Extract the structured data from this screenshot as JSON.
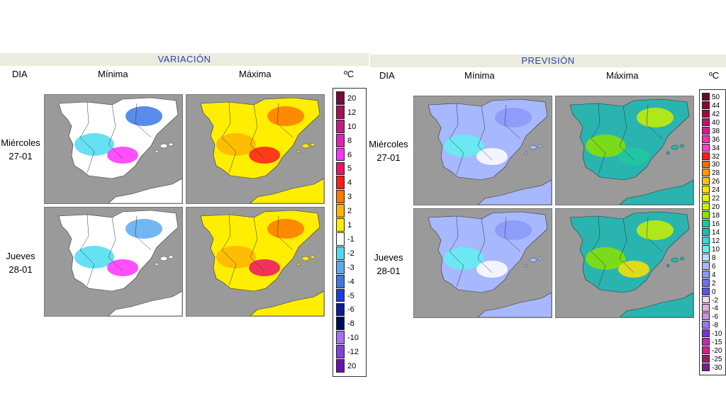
{
  "panels": {
    "variation": {
      "title": "VARIACIÓN",
      "day_header": "DIA",
      "col_min": "Mínima",
      "col_max": "Máxima",
      "unit": "ºC",
      "legend": [
        {
          "label": "20",
          "color": "#7a0a3a"
        },
        {
          "label": "12",
          "color": "#a8105a"
        },
        {
          "label": "10",
          "color": "#c81a86"
        },
        {
          "label": "8",
          "color": "#e020c0"
        },
        {
          "label": "6",
          "color": "#ff30ff"
        },
        {
          "label": "5",
          "color": "#f0106a"
        },
        {
          "label": "4",
          "color": "#ff1a1a"
        },
        {
          "label": "3",
          "color": "#ff7800"
        },
        {
          "label": "2",
          "color": "#ffb400"
        },
        {
          "label": "1",
          "color": "#ffee00"
        },
        {
          "label": "-1",
          "color": "#ffffff"
        },
        {
          "label": "-2",
          "color": "#4adcf0"
        },
        {
          "label": "-3",
          "color": "#5aaaf0"
        },
        {
          "label": "-4",
          "color": "#3c78e6"
        },
        {
          "label": "-5",
          "color": "#1a3ce0"
        },
        {
          "label": "-6",
          "color": "#0a1a9a"
        },
        {
          "label": "-8",
          "color": "#000a5a"
        },
        {
          "label": "-10",
          "color": "#a070ff"
        },
        {
          "label": "-12",
          "color": "#8040e8"
        },
        {
          "label": "20",
          "color": "#6a10b0"
        }
      ]
    },
    "forecast": {
      "title": "PREVISIÓN",
      "day_header": "DIA",
      "col_min": "Mínima",
      "col_max": "Máxima",
      "unit": "ºC",
      "legend": [
        {
          "label": "50",
          "color": "#6a0a20"
        },
        {
          "label": "44",
          "color": "#8a0a2a"
        },
        {
          "label": "42",
          "color": "#a00a40"
        },
        {
          "label": "40",
          "color": "#c0106a"
        },
        {
          "label": "38",
          "color": "#d81a8a"
        },
        {
          "label": "36",
          "color": "#f030b0"
        },
        {
          "label": "34",
          "color": "#ff40c8"
        },
        {
          "label": "32",
          "color": "#ff1a1a"
        },
        {
          "label": "30",
          "color": "#ff6a00"
        },
        {
          "label": "28",
          "color": "#ff9a00"
        },
        {
          "label": "26",
          "color": "#ffc000"
        },
        {
          "label": "24",
          "color": "#ffe000"
        },
        {
          "label": "22",
          "color": "#e6f000"
        },
        {
          "label": "20",
          "color": "#c8f000"
        },
        {
          "label": "18",
          "color": "#8ae000"
        },
        {
          "label": "16",
          "color": "#20c8a0"
        },
        {
          "label": "14",
          "color": "#2ab4b0"
        },
        {
          "label": "12",
          "color": "#30dcdc"
        },
        {
          "label": "10",
          "color": "#60f0f0"
        },
        {
          "label": "8",
          "color": "#b8dcff"
        },
        {
          "label": "6",
          "color": "#a8b8ff"
        },
        {
          "label": "4",
          "color": "#8898f8"
        },
        {
          "label": "2",
          "color": "#7070f0"
        },
        {
          "label": "0",
          "color": "#5a5ae0"
        },
        {
          "label": "-2",
          "color": "#f2d8f2"
        },
        {
          "label": "-4",
          "color": "#e0b0e0"
        },
        {
          "label": "-6",
          "color": "#c890e0"
        },
        {
          "label": "-8",
          "color": "#a070f0"
        },
        {
          "label": "-10",
          "color": "#7a30e0"
        },
        {
          "label": "-15",
          "color": "#c02ab0"
        },
        {
          "label": "-20",
          "color": "#d02090"
        },
        {
          "label": "-25",
          "color": "#a01870"
        },
        {
          "label": "-30",
          "color": "#7a1a90"
        }
      ]
    }
  },
  "days": [
    {
      "weekday": "Miércoles",
      "date": "27-01"
    },
    {
      "weekday": "Jueves",
      "date": "28-01"
    }
  ],
  "map_fills": {
    "var_min_1": {
      "land": "#ffffff",
      "blobs": [
        "#4adcf0",
        "#3c78e6",
        "#ff30ff"
      ]
    },
    "var_max_1": {
      "land": "#ffee00",
      "blobs": [
        "#ffb400",
        "#ff7800",
        "#ff1a1a"
      ]
    },
    "var_min_2": {
      "land": "#ffffff",
      "blobs": [
        "#4adcf0",
        "#5aaaf0",
        "#ff30ff"
      ]
    },
    "var_max_2": {
      "land": "#ffee00",
      "blobs": [
        "#ffb400",
        "#ff7800",
        "#f0106a"
      ]
    },
    "fc_min_1": {
      "land": "#a8b8ff",
      "blobs": [
        "#60f0f0",
        "#8898f8",
        "#ffffff"
      ]
    },
    "fc_max_1": {
      "land": "#2ab4b0",
      "blobs": [
        "#8ae000",
        "#c8f000",
        "#20c8a0"
      ]
    },
    "fc_min_2": {
      "land": "#a8b8ff",
      "blobs": [
        "#60f0f0",
        "#8898f8",
        "#ffffff"
      ]
    },
    "fc_max_2": {
      "land": "#2ab4b0",
      "blobs": [
        "#8ae000",
        "#c8f000",
        "#ffe000"
      ]
    }
  }
}
